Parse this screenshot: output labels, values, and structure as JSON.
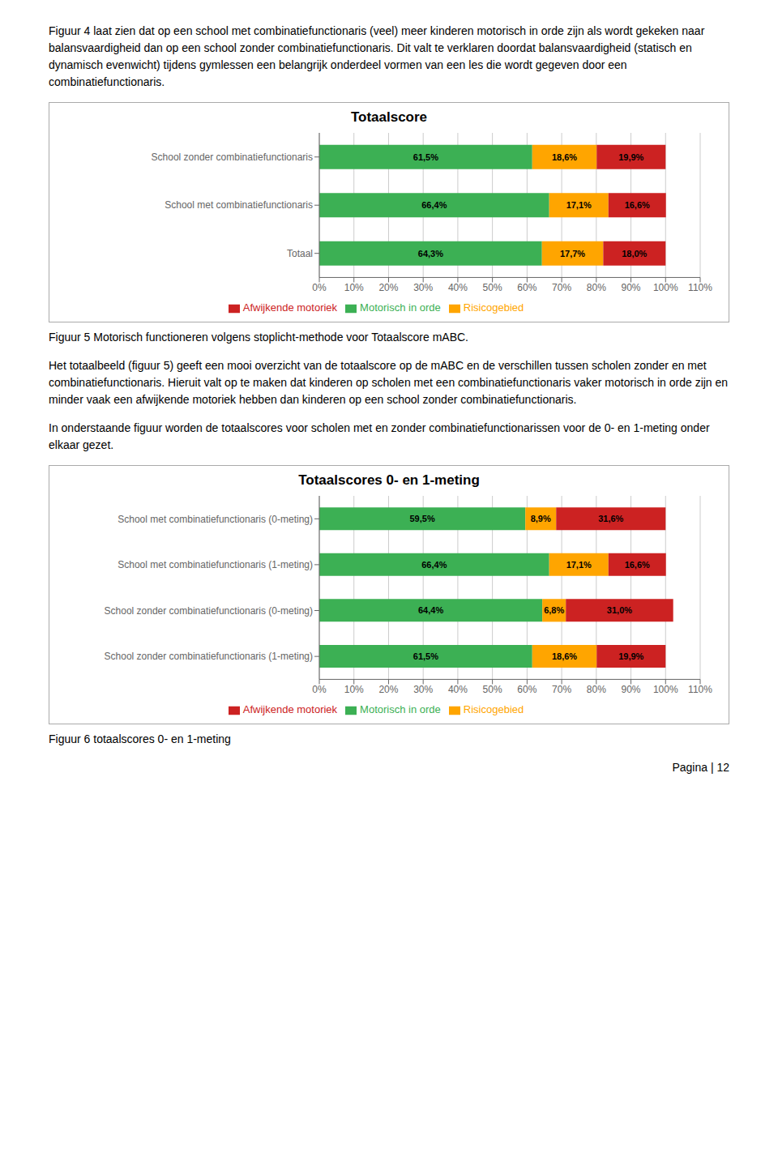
{
  "chart_data": [
    {
      "type": "bar",
      "title": "Totaalscore",
      "orientation": "horizontal",
      "stacked": true,
      "data_labels": true,
      "grid": true,
      "legend": "bottom",
      "categories": [
        "School zonder combinatiefunctionaris",
        "School met combinatiefunctionaris",
        "Totaal"
      ],
      "series": [
        {
          "name": "Motorisch in orde",
          "color": "#3CB054",
          "values": [
            61.5,
            66.4,
            64.3
          ],
          "value_labels": [
            "61,5%",
            "66,4%",
            "64,3%"
          ]
        },
        {
          "name": "Risicogebied",
          "color": "#FFA500",
          "values": [
            18.6,
            17.1,
            17.7
          ],
          "value_labels": [
            "18,6%",
            "17,1%",
            "17,7%"
          ]
        },
        {
          "name": "Afwijkende motoriek",
          "color": "#CC2222",
          "values": [
            19.9,
            16.6,
            18.0
          ],
          "value_labels": [
            "19,9%",
            "16,6%",
            "18,0%"
          ]
        }
      ],
      "xlim": [
        0,
        110
      ],
      "xticks": [
        {
          "value": 0,
          "label": "0%"
        },
        {
          "value": 10,
          "label": "10%"
        },
        {
          "value": 20,
          "label": "20%"
        },
        {
          "value": 30,
          "label": "30%"
        },
        {
          "value": 40,
          "label": "40%"
        },
        {
          "value": 50,
          "label": "50%"
        },
        {
          "value": 60,
          "label": "60%"
        },
        {
          "value": 70,
          "label": "70%"
        },
        {
          "value": 80,
          "label": "80%"
        },
        {
          "value": 90,
          "label": "90%"
        },
        {
          "value": 100,
          "label": "100%"
        },
        {
          "value": 110,
          "label": "110%"
        }
      ],
      "annotations": [
        "Figuur 4 laat zien dat op een school met combinatiefunctionaris (veel) meer kinderen motorisch in orde zijn als wordt gekeken naar balansvaardigheid dan op een school zonder combinatiefunctionaris. Dit valt te verklaren doordat balansvaardigheid (statisch en dynamisch evenwicht) tijdens gymlessen een belangrijk onderdeel vormen van een les die wordt gegeven door een combinatiefunctionaris.",
        "Figuur 5 Motorisch functioneren volgens stoplicht-methode voor Totaalscore mABC.",
        "Het totaalbeeld (figuur 5) geeft een mooi overzicht van de totaalscore op de mABC en de verschillen tussen scholen zonder en met combinatiefunctionaris. Hieruit valt op te maken dat kinderen op scholen met een combinatiefunctionaris vaker motorisch in orde zijn en minder vaak een afwijkende motoriek hebben dan kinderen op een school zonder combinatiefunctionaris.",
        "In onderstaande figuur worden de totaalscores voor scholen met en zonder combinatiefunctionarissen voor de 0- en 1-meting onder elkaar gezet."
      ]
    },
    {
      "type": "bar",
      "title": "Totaalscores 0- en 1-meting",
      "orientation": "horizontal",
      "stacked": true,
      "data_labels": true,
      "grid": true,
      "legend": "bottom",
      "categories": [
        "School met combinatiefunctionaris (0-meting)",
        "School met combinatiefunctionaris (1-meting)",
        "School zonder combinatiefunctionaris (0-meting)",
        "School zonder combinatiefunctionaris (1-meting)"
      ],
      "series": [
        {
          "name": "Motorisch in orde",
          "color": "#3CB054",
          "values": [
            59.5,
            66.4,
            64.4,
            61.5
          ],
          "value_labels": [
            "59,5%",
            "66,4%",
            "64,4%",
            "61,5%"
          ]
        },
        {
          "name": "Risicogebied",
          "color": "#FFA500",
          "values": [
            8.9,
            17.1,
            6.8,
            18.6
          ],
          "value_labels": [
            "8,9%",
            "17,1%",
            "6,8%",
            "18,6%"
          ]
        },
        {
          "name": "Afwijkende motoriek",
          "color": "#CC2222",
          "values": [
            31.6,
            16.6,
            31.0,
            19.9
          ],
          "value_labels": [
            "31,6%",
            "16,6%",
            "31,0%",
            "19,9%"
          ]
        }
      ],
      "xlim": [
        0,
        110
      ],
      "xticks": [
        {
          "value": 0,
          "label": "0%"
        },
        {
          "value": 10,
          "label": "10%"
        },
        {
          "value": 20,
          "label": "20%"
        },
        {
          "value": 30,
          "label": "30%"
        },
        {
          "value": 40,
          "label": "40%"
        },
        {
          "value": 50,
          "label": "50%"
        },
        {
          "value": 60,
          "label": "60%"
        },
        {
          "value": 70,
          "label": "70%"
        },
        {
          "value": 80,
          "label": "80%"
        },
        {
          "value": 90,
          "label": "90%"
        },
        {
          "value": 100,
          "label": "100%"
        },
        {
          "value": 110,
          "label": "110%"
        }
      ],
      "annotations": [
        "Figuur 6 totaalscores 0- en 1-meting",
        "Pagina | 12"
      ]
    }
  ]
}
